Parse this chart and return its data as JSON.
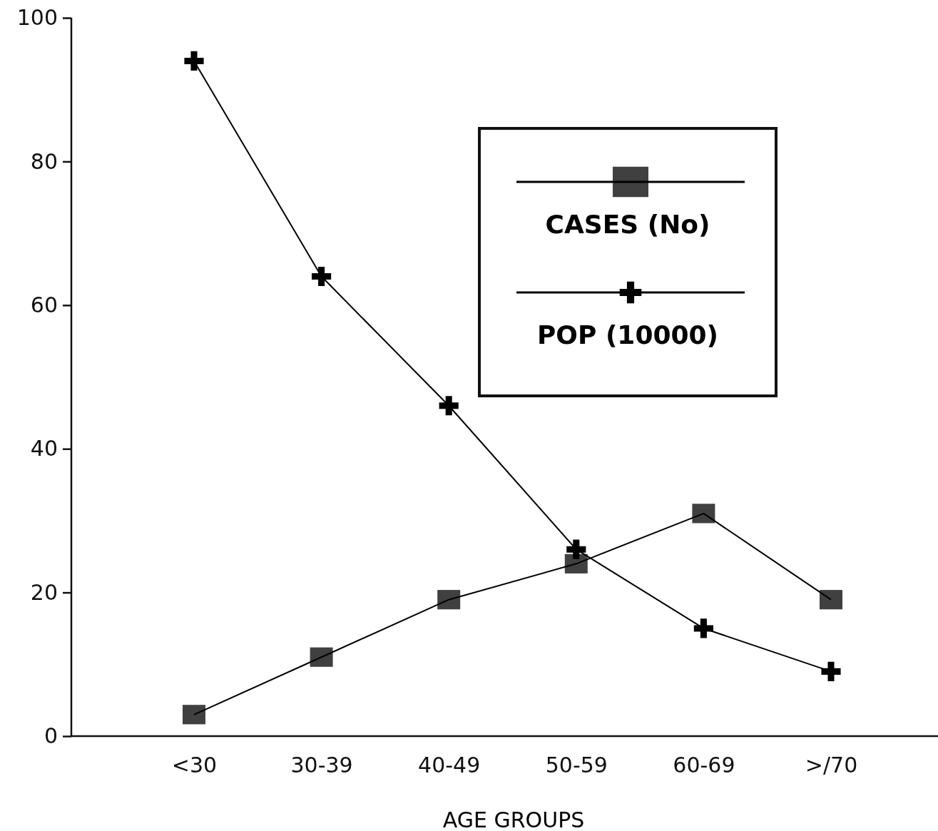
{
  "chart_data": {
    "type": "line",
    "xlabel": "AGE GROUPS",
    "categories": [
      "<30",
      "30-39",
      "40-49",
      "50-59",
      "60-69",
      ">/70"
    ],
    "series": [
      {
        "name": "CASES (No)",
        "color": "#000000",
        "marker": "square",
        "values": [
          3,
          11,
          19,
          24,
          31,
          19
        ]
      },
      {
        "name": "POP (10000)",
        "color": "#000000",
        "marker": "cross",
        "values": [
          94,
          64,
          46,
          26,
          15,
          9
        ]
      }
    ],
    "ylim": [
      0,
      100
    ],
    "yticks": [
      0,
      20,
      40,
      60,
      80,
      100
    ],
    "legend": "top right",
    "grid": false
  }
}
